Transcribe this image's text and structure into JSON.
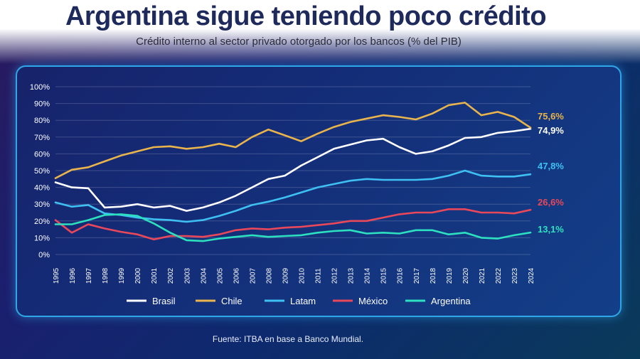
{
  "header": {
    "title": "Argentina sigue teniendo poco crédito",
    "subtitle": "Crédito interno al sector privado otorgado por los bancos (% del PIB)"
  },
  "footer": {
    "source": "Fuente: ITBA en base a Banco Mundial."
  },
  "chart_data": {
    "type": "line",
    "x": [
      1995,
      1996,
      1997,
      1998,
      1999,
      2000,
      2001,
      2002,
      2003,
      2004,
      2005,
      2006,
      2007,
      2008,
      2009,
      2010,
      2011,
      2012,
      2013,
      2014,
      2015,
      2016,
      2017,
      2018,
      2019,
      2020,
      2021,
      2022,
      2023,
      2024
    ],
    "xtick_labels": [
      "1995",
      "1996",
      "1997",
      "1998",
      "1999",
      "2000",
      "2001",
      "2002",
      "2003",
      "2004",
      "2005",
      "2006",
      "2007",
      "2008",
      "2009",
      "2010",
      "2011",
      "2012",
      "2013",
      "2014",
      "2015",
      "2016",
      "2017",
      "2018",
      "2019",
      "2020",
      "2021",
      "2022",
      "2023",
      "2024"
    ],
    "ylim": [
      0,
      100
    ],
    "ytick_labels": [
      "0%",
      "10%",
      "20%",
      "30%",
      "40%",
      "50%",
      "60%",
      "70%",
      "80%",
      "90%",
      "100%"
    ],
    "grid": true,
    "legend_position": "bottom",
    "series": [
      {
        "name": "Brasil",
        "color": "#ffffff",
        "end_label": "74,9%",
        "values": [
          43,
          40,
          39.5,
          28,
          28.5,
          30,
          28,
          29,
          26,
          28,
          31,
          35,
          40,
          45,
          47,
          53,
          58,
          63,
          65.5,
          68,
          69,
          64,
          60,
          61.5,
          65,
          69.5,
          70,
          72.5,
          73.5,
          74.9
        ]
      },
      {
        "name": "Chile",
        "color": "#e9b44c",
        "end_label": "75,6%",
        "values": [
          45.5,
          50.5,
          52,
          55.5,
          59,
          61.5,
          64,
          64.5,
          63,
          64,
          66,
          64,
          70,
          74.5,
          71,
          67.5,
          72,
          76,
          79,
          81,
          83,
          82,
          80.5,
          84,
          89,
          90.5,
          83,
          85,
          82,
          75.6
        ]
      },
      {
        "name": "Latam",
        "color": "#3ec0f2",
        "end_label": "47,8%",
        "values": [
          31,
          28.5,
          29.5,
          24.5,
          23.5,
          22,
          21,
          20.5,
          19.5,
          20.5,
          23,
          26,
          29.5,
          31.5,
          34,
          37,
          40,
          42,
          44,
          45,
          44.5,
          44.5,
          44.5,
          45,
          47,
          50,
          47,
          46.5,
          46.5,
          47.8
        ]
      },
      {
        "name": "México",
        "color": "#e8485a",
        "end_label": "26,6%",
        "values": [
          20.5,
          13,
          18,
          15.5,
          13.5,
          12,
          9,
          11,
          11,
          10.5,
          12,
          14.5,
          15.5,
          15,
          16,
          16.5,
          17.5,
          18.5,
          20,
          20,
          22,
          24,
          25,
          25,
          27,
          27,
          25,
          25,
          24.5,
          26.6
        ]
      },
      {
        "name": "Argentina",
        "color": "#2de0bf",
        "end_label": "13,1%",
        "values": [
          18,
          18,
          20.5,
          23.5,
          24,
          23,
          18.5,
          13,
          8.5,
          8,
          9.5,
          10.5,
          11.5,
          10.5,
          11,
          11.5,
          13,
          14,
          14.5,
          12.5,
          13,
          12.5,
          14.5,
          14.5,
          12,
          13,
          10,
          9.5,
          11.5,
          13.1
        ]
      }
    ]
  }
}
